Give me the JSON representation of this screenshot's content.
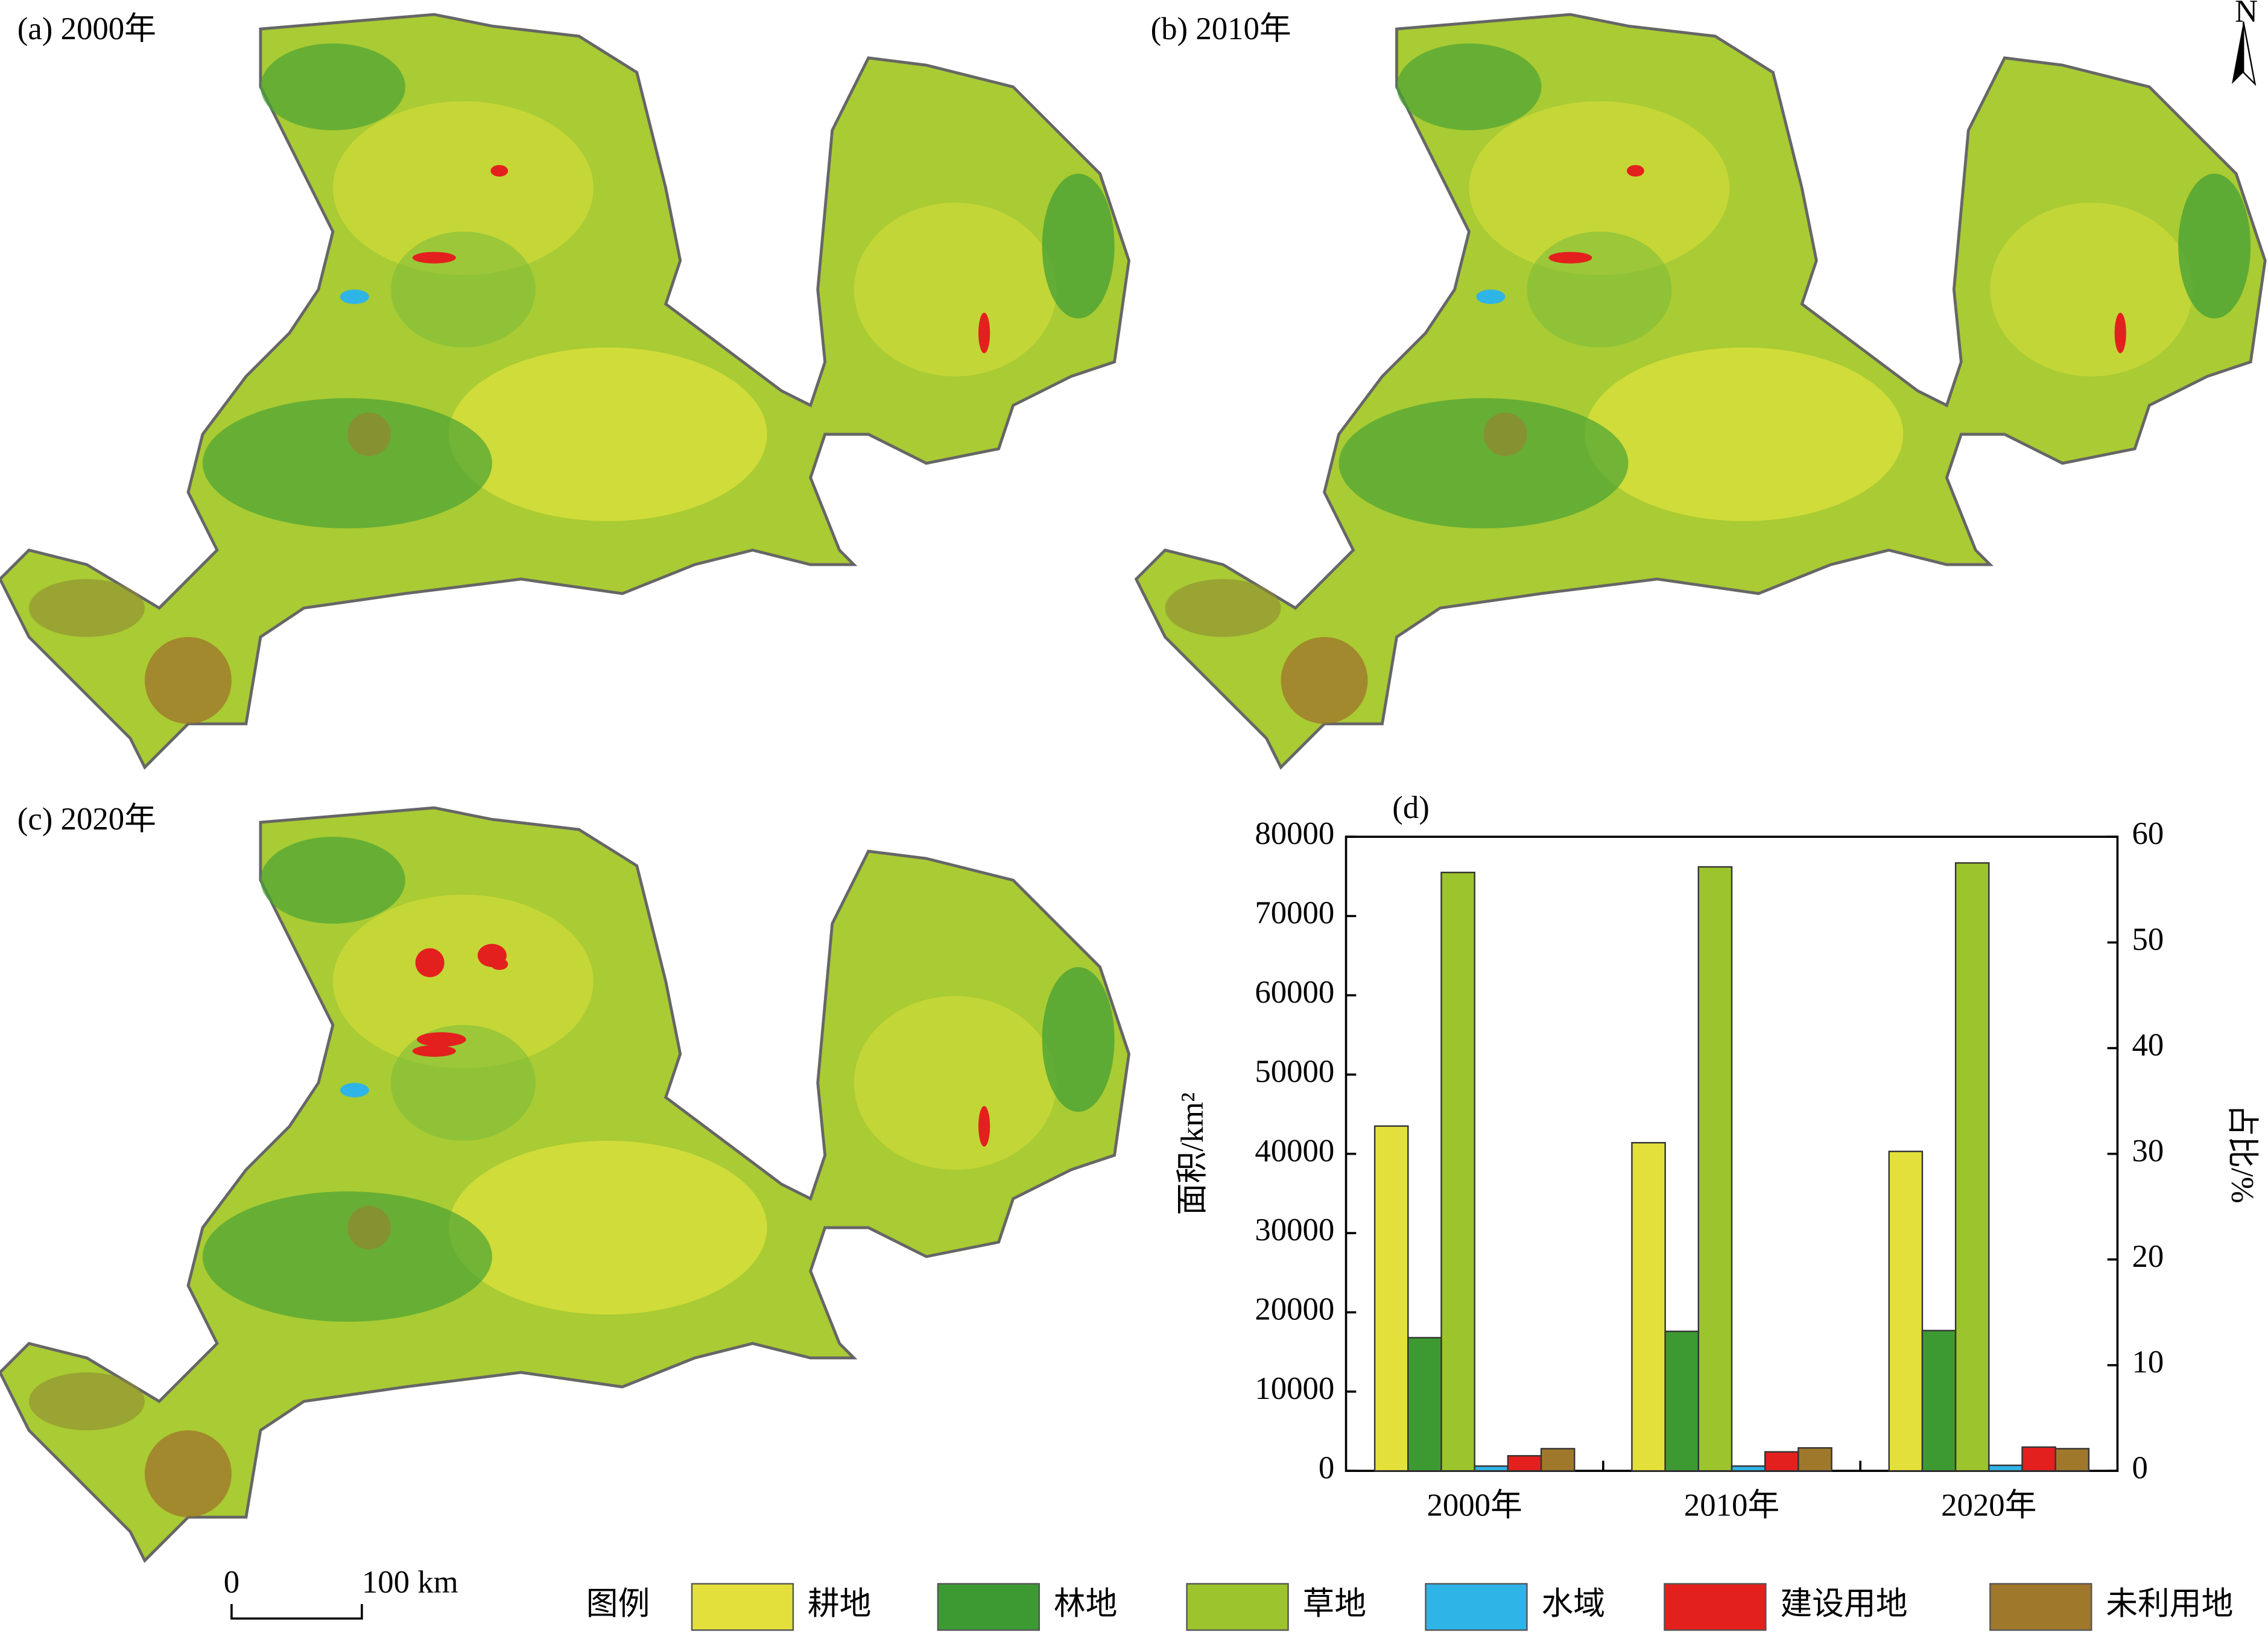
{
  "maps": [
    {
      "label": "(a) 2000年"
    },
    {
      "label": "(b) 2010年"
    },
    {
      "label": "(c) 2020年"
    }
  ],
  "north": "N",
  "scale_bar": {
    "labels": [
      "0",
      "100 km"
    ]
  },
  "legend_title": "图例",
  "chart_data": {
    "type": "bar",
    "title": "(d)",
    "y_label": "面积/km²",
    "y2_label": "占比/%",
    "categories": [
      "2000年",
      "2010年",
      "2020年"
    ],
    "series": [
      {
        "name": "耕地",
        "color": "#e3e03c",
        "values": [
          43500,
          41400,
          40300
        ]
      },
      {
        "name": "林地",
        "color": "#3d9a33",
        "values": [
          16800,
          17600,
          17700
        ]
      },
      {
        "name": "草地",
        "color": "#9cc42c",
        "values": [
          75500,
          76200,
          76700
        ]
      },
      {
        "name": "水域",
        "color": "#2fb4e8",
        "values": [
          600,
          600,
          700
        ]
      },
      {
        "name": "建设用地",
        "color": "#e3201e",
        "values": [
          1900,
          2400,
          3000
        ]
      },
      {
        "name": "未利用地",
        "color": "#a0782c",
        "values": [
          2800,
          2900,
          2800
        ]
      }
    ],
    "ylim": [
      0,
      80000
    ],
    "yticks": [
      0,
      10000,
      20000,
      30000,
      40000,
      50000,
      60000,
      70000,
      80000
    ],
    "y2lim": [
      0,
      60
    ],
    "y2ticks": [
      0,
      10,
      20,
      30,
      40,
      50,
      60
    ]
  }
}
